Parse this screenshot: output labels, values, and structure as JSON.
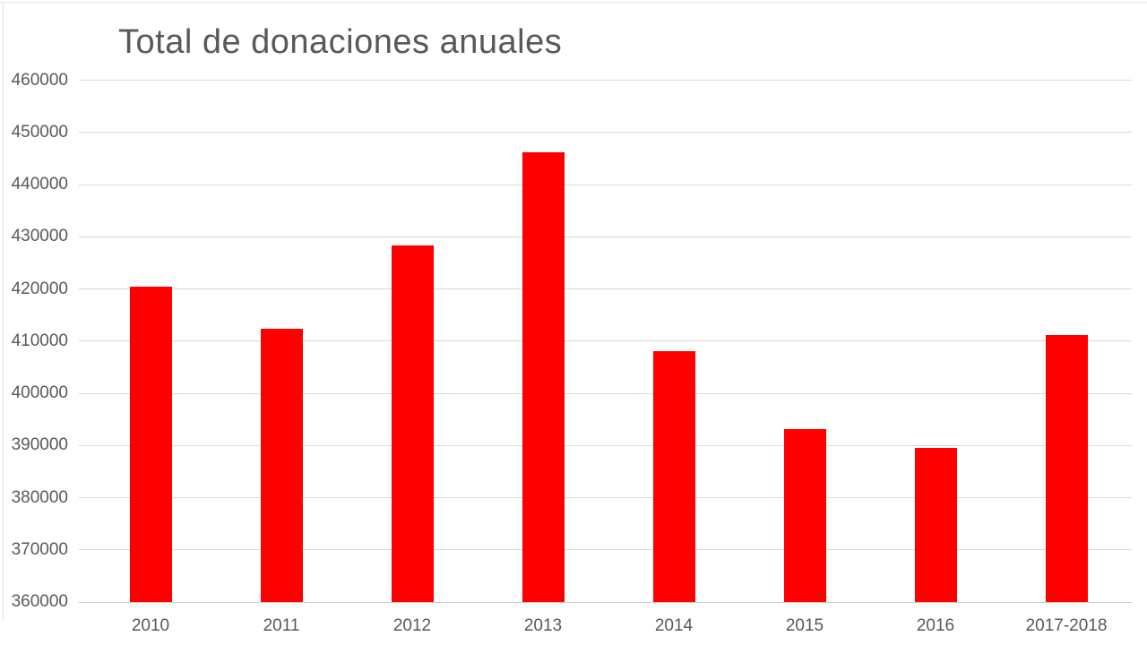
{
  "chart_data": {
    "type": "bar",
    "title": "Total de donaciones anuales",
    "categories": [
      "2010",
      "2011",
      "2012",
      "2013",
      "2014",
      "2015",
      "2016",
      "2017-2018"
    ],
    "values": [
      420400,
      412400,
      428300,
      446200,
      408000,
      393100,
      389500,
      411200
    ],
    "xlabel": "",
    "ylabel": "",
    "ylim": [
      360000,
      460000
    ],
    "ytick_step": 10000,
    "yticks": [
      "360000",
      "370000",
      "380000",
      "390000",
      "400000",
      "410000",
      "420000",
      "430000",
      "440000",
      "450000",
      "460000"
    ],
    "grid": true,
    "legend_position": "none",
    "bar_color": "#fe0000",
    "title_color": "#595959",
    "axis_text_color": "#595959",
    "gridline_color": "#d9d9d9"
  }
}
